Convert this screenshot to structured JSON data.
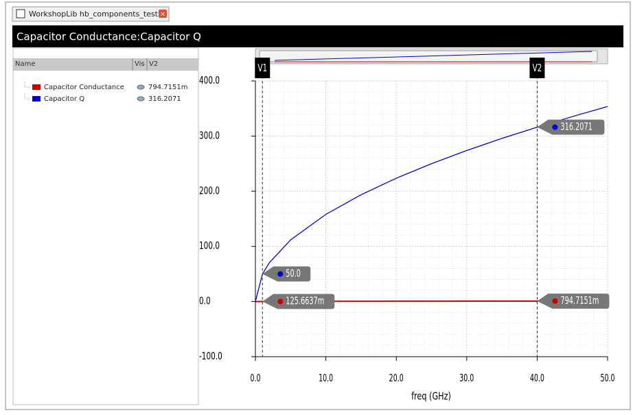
{
  "tab": {
    "label": "WorkshopLib hb_components_test ..."
  },
  "window_title": "Capacitor Conductance:Capacitor Q",
  "legend_table": {
    "headers": [
      "Name",
      "Vis",
      "V2"
    ],
    "rows": [
      {
        "name": "Capacitor Conductance",
        "reading": "794.7151m"
      },
      {
        "name": "Capacitor Q",
        "reading": "316.2071"
      }
    ]
  },
  "chart_data": {
    "type": "line",
    "x_label": "freq (GHz)",
    "xlim": [
      0,
      50
    ],
    "ylim": [
      -100,
      400
    ],
    "xticks": [
      {
        "value": 0,
        "label": "0.0"
      },
      {
        "value": 10,
        "label": "10.0"
      },
      {
        "value": 20,
        "label": "20.0"
      },
      {
        "value": 30,
        "label": "30.0"
      },
      {
        "value": 40,
        "label": "40.0"
      },
      {
        "value": 50,
        "label": "50.0"
      }
    ],
    "yticks": [
      {
        "value": -100,
        "label": "-100.0"
      },
      {
        "value": 0,
        "label": "0.0"
      },
      {
        "value": 100,
        "label": "100.0"
      },
      {
        "value": 200,
        "label": "200.0"
      },
      {
        "value": 300,
        "label": "300.0"
      },
      {
        "value": 400,
        "label": "400.0"
      }
    ],
    "grid": true,
    "x": [
      0,
      1,
      2,
      5,
      10,
      15,
      20,
      25,
      30,
      35,
      40,
      45,
      50
    ],
    "series": [
      {
        "name": "Capacitor Conductance",
        "color": "#cc0000",
        "values": [
          0,
          0.1257,
          0.1777,
          0.281,
          0.397,
          0.487,
          0.562,
          0.628,
          0.688,
          0.743,
          0.795,
          0.843,
          0.889
        ]
      },
      {
        "name": "Capacitor Q",
        "color": "#0000cc",
        "values": [
          0,
          50,
          70.7,
          111.8,
          158.1,
          193.6,
          223.6,
          250,
          273.9,
          295.8,
          316.2,
          335.4,
          353.6
        ]
      }
    ],
    "markers": [
      {
        "label": "V1",
        "x": 1,
        "readings": [
          {
            "value": 50,
            "label": "50.0"
          },
          {
            "value": 0.1256637,
            "label": "125.6637m"
          }
        ]
      },
      {
        "label": "V2",
        "x": 40,
        "readings": [
          {
            "value": 316.2071,
            "label": "316.2071"
          },
          {
            "value": 0.7947151,
            "label": "794.7151m"
          }
        ]
      }
    ]
  }
}
